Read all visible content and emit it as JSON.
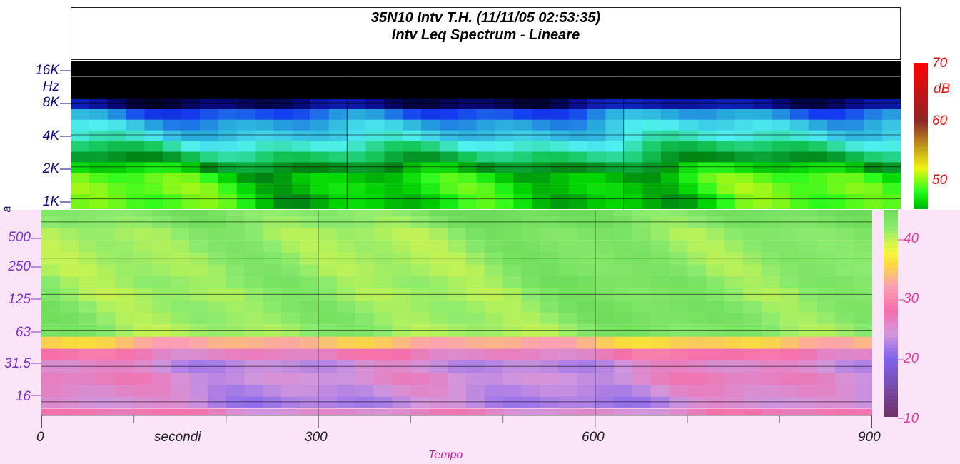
{
  "title": {
    "line1": "35N10 Intv T.H. (11/11/05 02:53:35)",
    "line2": "Intv Leq Spectrum - Lineare"
  },
  "upper_axis": {
    "unit": "Hz",
    "cut_label": "a",
    "ticks": [
      {
        "label": "16K",
        "value": 16000
      },
      {
        "label": "8K",
        "value": 8000
      },
      {
        "label": "4K",
        "value": 4000
      },
      {
        "label": "2K",
        "value": 2000
      },
      {
        "label": "1K",
        "value": 1000
      }
    ]
  },
  "lower_axis": {
    "ticks": [
      {
        "label": "500",
        "value": 500
      },
      {
        "label": "250",
        "value": 250
      },
      {
        "label": "125",
        "value": 125
      },
      {
        "label": "63",
        "value": 63
      },
      {
        "label": "31.5",
        "value": 31.5
      },
      {
        "label": "16",
        "value": 16
      }
    ]
  },
  "x_axis": {
    "ticks": [
      {
        "label": "0",
        "value": 0
      },
      {
        "label": "300",
        "value": 300
      },
      {
        "label": "600",
        "value": 600
      },
      {
        "label": "900",
        "value": 900
      }
    ],
    "minor_ticks": [
      100,
      200,
      400,
      500,
      700,
      800
    ],
    "unit_label": "secondi",
    "title": "Tempo"
  },
  "colorbar_upper": {
    "unit": "dB",
    "ticks": [
      {
        "label": "70",
        "value": 70
      },
      {
        "label": "60",
        "value": 60
      },
      {
        "label": "50",
        "value": 50
      }
    ],
    "range": [
      45,
      70
    ]
  },
  "colorbar_lower": {
    "ticks": [
      {
        "label": "40",
        "value": 40
      },
      {
        "label": "30",
        "value": 30
      },
      {
        "label": "20",
        "value": 20
      },
      {
        "label": "10",
        "value": 10
      }
    ],
    "range": [
      10,
      45
    ]
  },
  "chart_data": {
    "type": "heatmap",
    "title": "35N10 Intv T.H. (11/11/05 02:53:35)",
    "subtitle": "Intv Leq Spectrum - Lineare",
    "xlabel": "Tempo",
    "xunit": "secondi",
    "xlim": [
      0,
      900
    ],
    "time_step_s": 20,
    "yscale": "log",
    "upper_panel": {
      "ylabel": "Hz",
      "ylim_hz": [
        800,
        20000
      ],
      "color_unit": "dB",
      "color_range": [
        45,
        70
      ],
      "bands_hz": [
        1000,
        1250,
        1600,
        2000,
        2500,
        3150,
        4000,
        5000,
        6300,
        8000,
        10000,
        12500,
        16000,
        20000
      ],
      "band_level_db": [
        47,
        47.5,
        47,
        44.5,
        41,
        38,
        35,
        33,
        30,
        22,
        10,
        10,
        10,
        10
      ]
    },
    "lower_panel": {
      "ylim_hz": [
        12.5,
        630
      ],
      "color_range": [
        10,
        45
      ],
      "bands_hz": [
        12.5,
        16,
        20,
        25,
        31.5,
        40,
        50,
        63,
        80,
        100,
        125,
        160,
        200,
        250,
        315,
        400,
        500,
        630
      ],
      "band_level_db": [
        26,
        23,
        24,
        25,
        24,
        27,
        34,
        42,
        42.5,
        42.5,
        42,
        42.5,
        42,
        42,
        42,
        42,
        43,
        43.5
      ]
    },
    "grid": true,
    "vertical_gridlines_s": [
      300,
      600
    ]
  }
}
